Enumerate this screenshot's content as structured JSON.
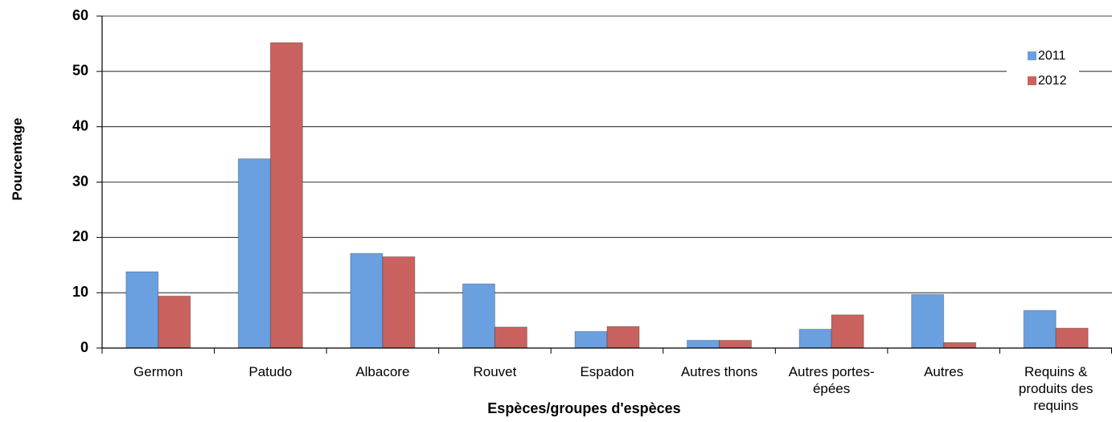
{
  "chart_data": {
    "type": "bar",
    "x_label": "Espèces/groupes d'espèces",
    "y_label": "Pourcentage",
    "categories": [
      "Germon",
      "Patudo",
      "Albacore",
      "Rouvet",
      "Espadon",
      "Autres thons",
      "Autres portes-épées",
      "Autres",
      "Requins & produits des requins"
    ],
    "series": [
      {
        "name": "2011",
        "color": "#6aa0e0",
        "values": [
          13.8,
          34.2,
          17.1,
          11.6,
          3.0,
          1.4,
          3.4,
          9.7,
          6.8
        ]
      },
      {
        "name": "2012",
        "color": "#c9625e",
        "values": [
          9.4,
          55.2,
          16.5,
          3.8,
          3.9,
          1.4,
          6.0,
          1.0,
          3.6
        ]
      }
    ],
    "ylim": [
      0,
      60
    ],
    "yticks": [
      0,
      10,
      20,
      30,
      40,
      50,
      60
    ],
    "grid": true,
    "legend": "top-right"
  }
}
